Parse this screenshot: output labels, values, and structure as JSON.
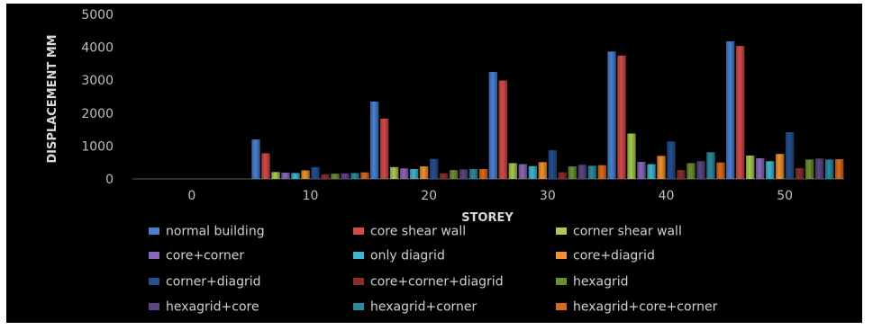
{
  "chart_data": {
    "type": "bar",
    "title": "",
    "xlabel": "STOREY",
    "ylabel": "DISPLACEMENT MM",
    "categories": [
      "0",
      "10",
      "20",
      "30",
      "40",
      "50"
    ],
    "ylim": [
      0,
      5000
    ],
    "yticks": [
      0,
      1000,
      2000,
      3000,
      4000,
      5000
    ],
    "grid": false,
    "legend_position": "bottom",
    "series": [
      {
        "name": "normal building",
        "color": "#4a7fd0",
        "values": [
          0,
          1200,
          2350,
          3250,
          3870,
          4180
        ]
      },
      {
        "name": "core shear wall",
        "color": "#d34a4a",
        "values": [
          0,
          780,
          1830,
          2990,
          3750,
          4040
        ]
      },
      {
        "name": "corner shear wall",
        "color": "#a6c94e",
        "values": [
          0,
          210,
          360,
          480,
          1380,
          710
        ]
      },
      {
        "name": "core+corner",
        "color": "#8a67b8",
        "values": [
          0,
          190,
          320,
          450,
          520,
          630
        ]
      },
      {
        "name": "only diagrid",
        "color": "#3fb6cf",
        "values": [
          0,
          180,
          300,
          390,
          450,
          540
        ]
      },
      {
        "name": "core+diagrid",
        "color": "#f0902f",
        "values": [
          0,
          260,
          380,
          510,
          700,
          760
        ]
      },
      {
        "name": "corner+diagrid",
        "color": "#254f8f",
        "values": [
          0,
          360,
          610,
          870,
          1140,
          1420
        ]
      },
      {
        "name": "core+corner+diagrid",
        "color": "#8c2d2d",
        "values": [
          0,
          140,
          170,
          200,
          270,
          330
        ]
      },
      {
        "name": "hexagrid",
        "color": "#6a8f2f",
        "values": [
          0,
          160,
          270,
          380,
          480,
          590
        ]
      },
      {
        "name": "hexagrid+core",
        "color": "#5b4585",
        "values": [
          0,
          170,
          290,
          430,
          540,
          620
        ]
      },
      {
        "name": "hexagrid+corner",
        "color": "#2a8a9e",
        "values": [
          0,
          180,
          300,
          400,
          810,
          590
        ]
      },
      {
        "name": "hexagrid+core+corner",
        "color": "#d86a1c",
        "values": [
          0,
          200,
          300,
          420,
          500,
          600
        ]
      }
    ]
  }
}
